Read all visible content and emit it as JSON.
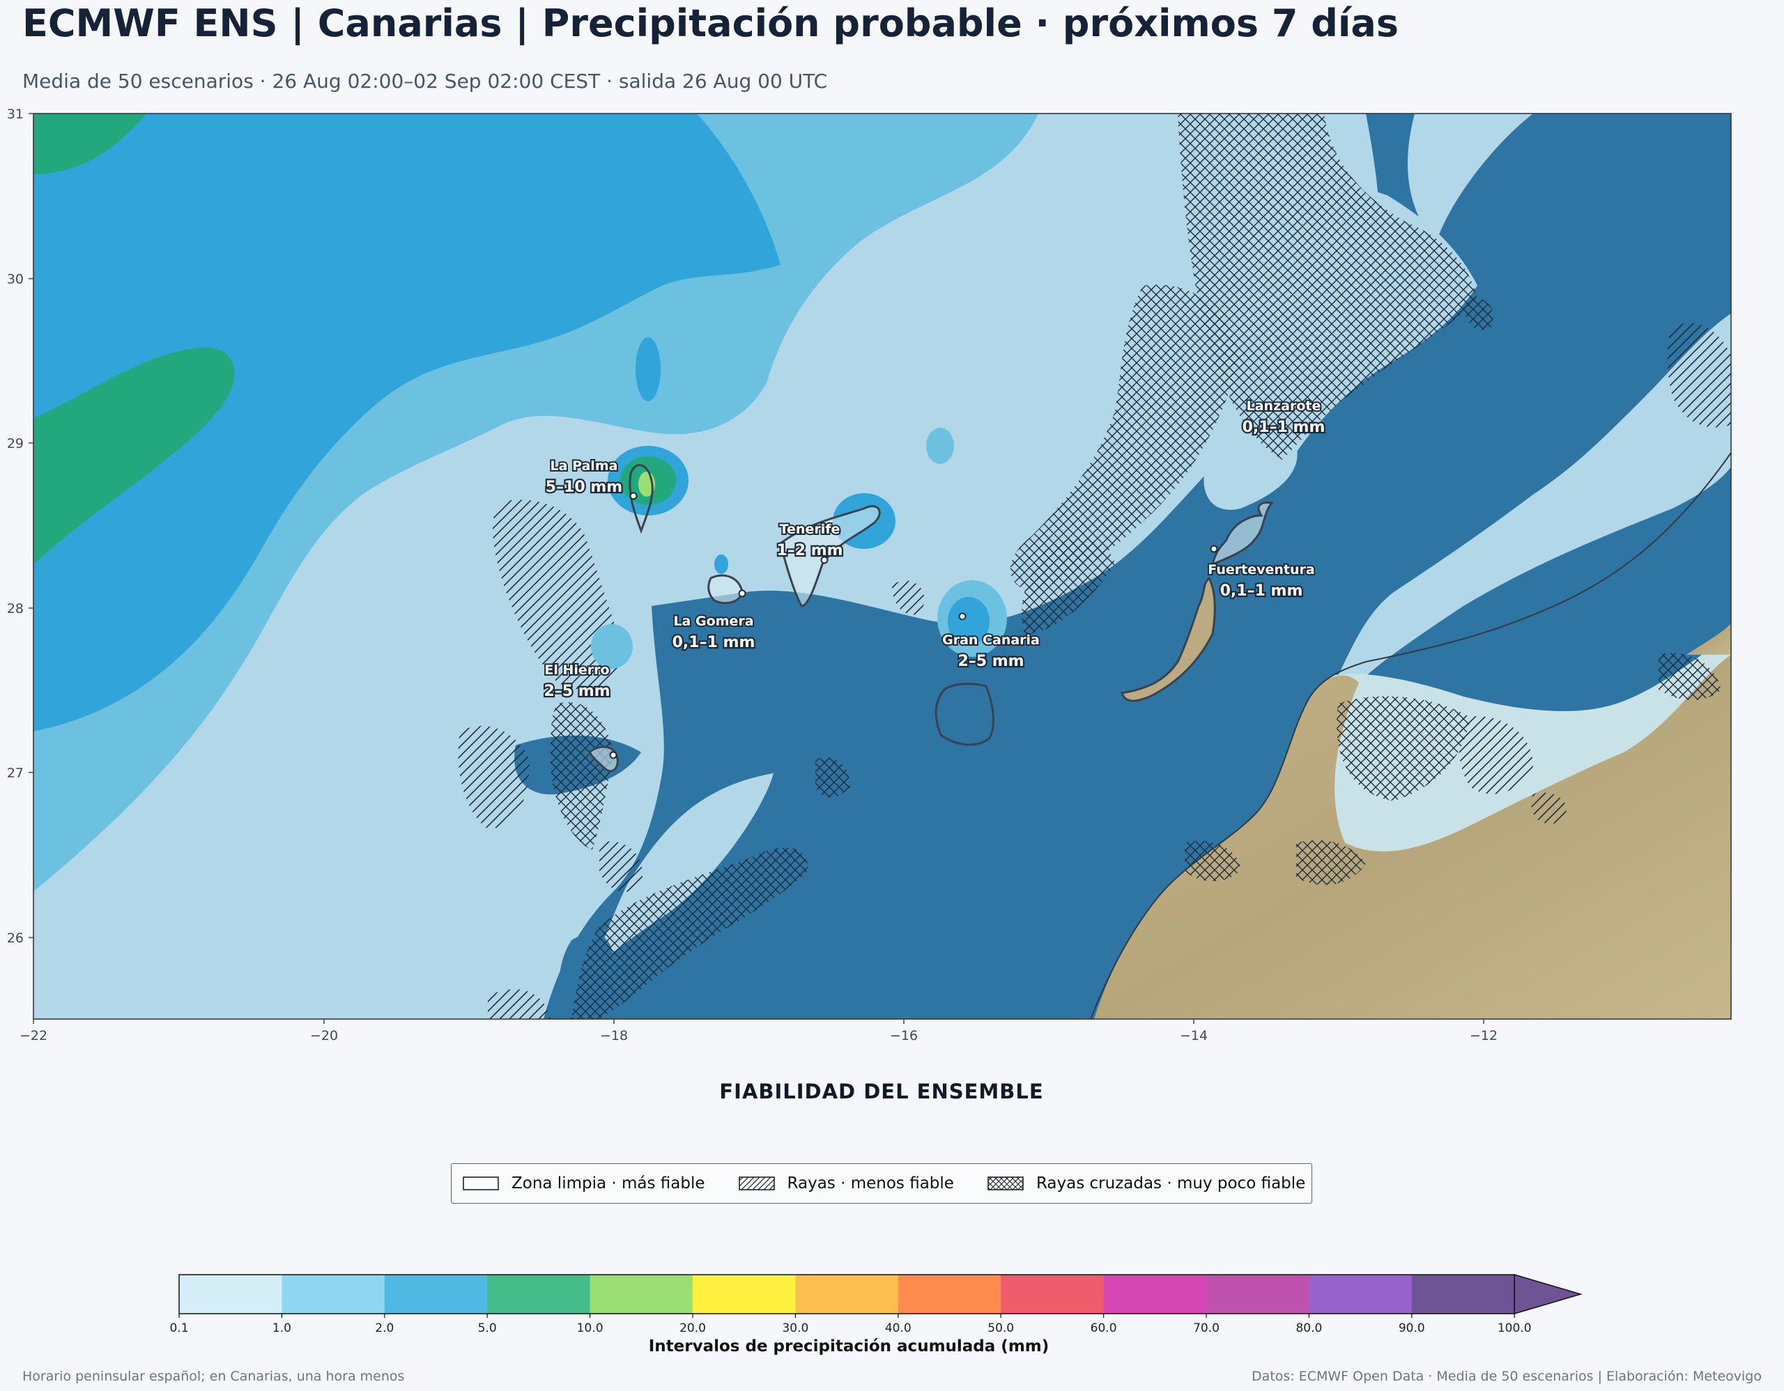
{
  "title": "ECMWF ENS | Canarias | Precipitación probable · próximos 7 días",
  "subtitle": "Media de 50 escenarios · 26 Aug 02:00–02 Sep 02:00 CEST · salida 26 Aug 00 UTC",
  "map": {
    "lon_ticks": [
      "−22",
      "−20",
      "−18",
      "−16",
      "−14",
      "−12"
    ],
    "lat_ticks": [
      "31",
      "30",
      "29",
      "28",
      "27",
      "26"
    ],
    "islands": [
      {
        "name": "La Palma",
        "value": "5–10 mm"
      },
      {
        "name": "Tenerife",
        "value": "1–2 mm"
      },
      {
        "name": "La Gomera",
        "value": "0,1–1 mm"
      },
      {
        "name": "El Hierro",
        "value": "2–5 mm"
      },
      {
        "name": "Gran Canaria",
        "value": "2–5 mm"
      },
      {
        "name": "Lanzarote",
        "value": "0,1–1 mm"
      },
      {
        "name": "Fuerteventura",
        "value": "0,1–1 mm"
      }
    ],
    "colors": {
      "ocean_dry": "#2e75a3",
      "light": "#b2d7e8",
      "mid": "#6cc0e0",
      "blue": "#31a5d9",
      "green": "#22a87c",
      "land": "#bcab82"
    }
  },
  "reliability": {
    "title": "FIABILIDAD DEL ENSEMBLE",
    "items": [
      {
        "label": "Zona limpia · más fiable",
        "pattern": "none"
      },
      {
        "label": "Rayas · menos fiable",
        "pattern": "hatch"
      },
      {
        "label": "Rayas cruzadas · muy poco fiable",
        "pattern": "crosshatch"
      }
    ]
  },
  "colorbar": {
    "label": "Intervalos de precipitación acumulada (mm)",
    "ticks": [
      "0.1",
      "1.0",
      "2.0",
      "5.0",
      "10.0",
      "20.0",
      "30.0",
      "40.0",
      "50.0",
      "60.0",
      "70.0",
      "80.0",
      "90.0",
      "100.0"
    ],
    "colors": [
      "#d6eef7",
      "#8fd6f0",
      "#4fb9e4",
      "#45bd8a",
      "#9ade74",
      "#fef03e",
      "#ffbf4e",
      "#ff8c4e",
      "#f05c6c",
      "#d747b4",
      "#bf52ad",
      "#9662cc",
      "#6f5495"
    ],
    "extend_color": "#6f5495"
  },
  "footer": {
    "left": "Horario peninsular español; en Canarias, una hora menos",
    "right": "Datos: ECMWF Open Data · Media de 50 escenarios | Elaboración: Meteovigo"
  }
}
